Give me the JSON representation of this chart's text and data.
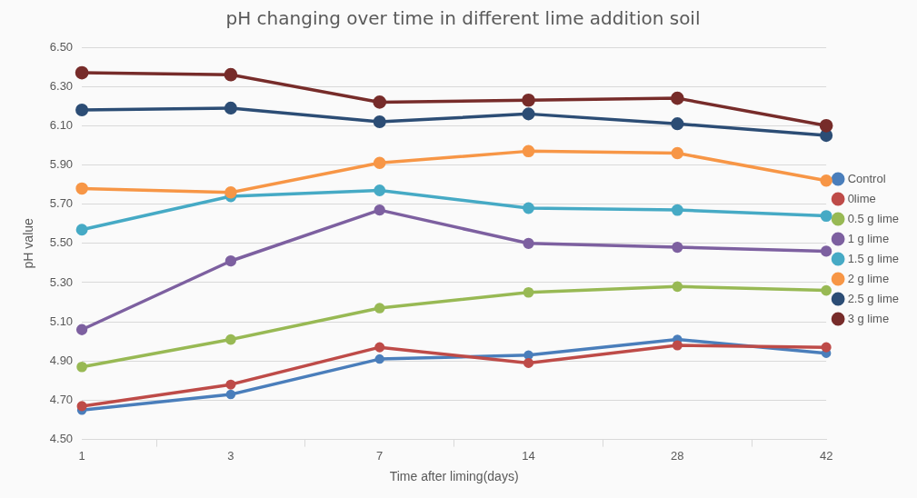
{
  "chart_data": {
    "type": "line",
    "title": "pH changing over time in different lime addition soil",
    "xlabel": "Time after liming(days)",
    "ylabel": "pH value",
    "categories": [
      "1",
      "3",
      "7",
      "14",
      "28",
      "42"
    ],
    "ylim": [
      4.5,
      6.5
    ],
    "yticks": [
      {
        "value": 4.5,
        "label": "4.50"
      },
      {
        "value": 4.7,
        "label": "4.70"
      },
      {
        "value": 4.9,
        "label": "4.90"
      },
      {
        "value": 5.1,
        "label": "5.10"
      },
      {
        "value": 5.3,
        "label": "5.30"
      },
      {
        "value": 5.5,
        "label": "5.50"
      },
      {
        "value": 5.7,
        "label": "5.70"
      },
      {
        "value": 5.9,
        "label": "5.90"
      },
      {
        "value": 6.1,
        "label": "6.10"
      },
      {
        "value": 6.3,
        "label": "6.30"
      },
      {
        "value": 6.5,
        "label": "6.50"
      }
    ],
    "grid": "y",
    "legend": "right",
    "marker": "circle",
    "series": [
      {
        "name": "Control",
        "color": "#4a7ebb",
        "values": [
          4.65,
          4.73,
          4.91,
          4.93,
          5.01,
          4.94
        ]
      },
      {
        "name": "0lime",
        "color": "#be4b48",
        "values": [
          4.67,
          4.78,
          4.97,
          4.89,
          4.98,
          4.97
        ]
      },
      {
        "name": "0.5 g lime",
        "color": "#98b954",
        "values": [
          4.87,
          5.01,
          5.17,
          5.25,
          5.28,
          5.26
        ]
      },
      {
        "name": "1 g lime",
        "color": "#7d60a0",
        "values": [
          5.06,
          5.41,
          5.67,
          5.5,
          5.48,
          5.46
        ]
      },
      {
        "name": "1.5 g lime",
        "color": "#46aac5",
        "values": [
          5.57,
          5.74,
          5.77,
          5.68,
          5.67,
          5.64
        ]
      },
      {
        "name": "2 g lime",
        "color": "#f79646",
        "values": [
          5.78,
          5.76,
          5.91,
          5.97,
          5.96,
          5.82
        ]
      },
      {
        "name": "2.5 g lime",
        "color": "#2c4d75",
        "values": [
          6.18,
          6.19,
          6.12,
          6.16,
          6.11,
          6.05
        ]
      },
      {
        "name": "3 g lime",
        "color": "#772c2a",
        "values": [
          6.37,
          6.36,
          6.22,
          6.23,
          6.24,
          6.1
        ]
      }
    ]
  }
}
